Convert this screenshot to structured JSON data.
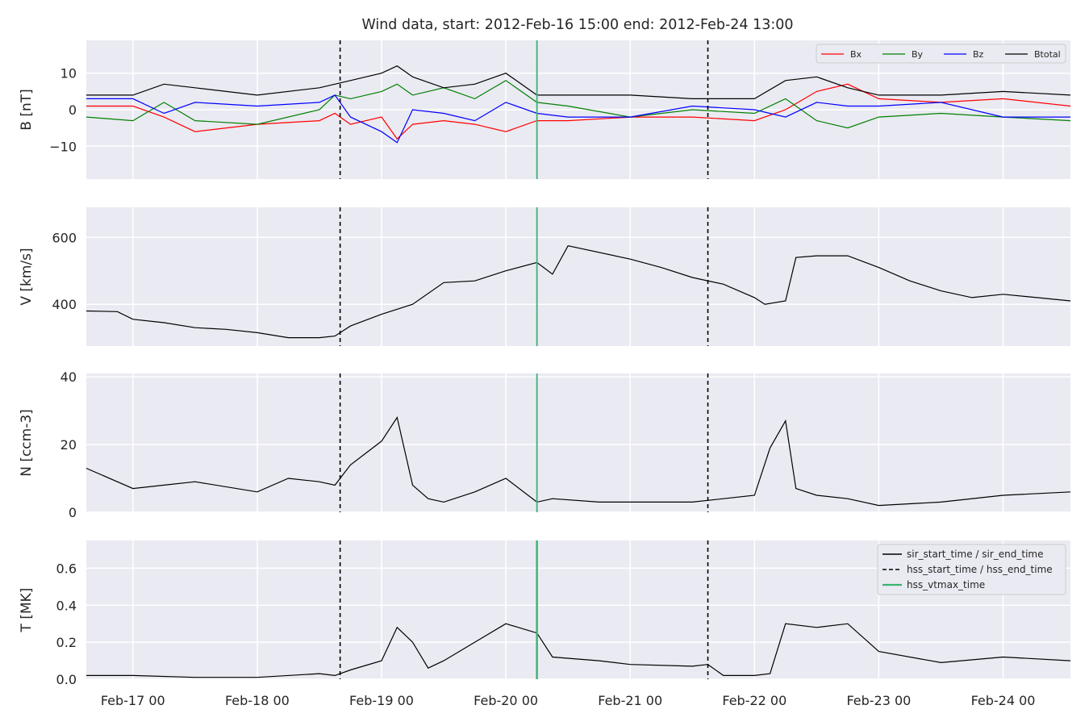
{
  "figure": {
    "title": "Wind data, start: 2012-Feb-16 15:00  end: 2012-Feb-24 13:00",
    "colors": {
      "plot_background": "#eaeaf2",
      "grid": "#ffffff",
      "text": "#262626",
      "event_line_dashed": "#000000",
      "vtmax_line": "#3cb371"
    }
  },
  "chart_data": [
    {
      "type": "line",
      "panel": "magnetic_field",
      "ylabel": "B [nT]",
      "ylim": [
        -19,
        19
      ],
      "yticks": [
        10,
        0,
        -10
      ],
      "ytick_labels": [
        "10",
        "0",
        "−10"
      ],
      "xlim": [
        "2012-02-16 15:00",
        "2012-02-24 13:00"
      ],
      "legend": {
        "position": "top-right",
        "entries": [
          "Bx",
          "By",
          "Bz",
          "Btotal"
        ]
      },
      "series": [
        {
          "name": "Bx",
          "color": "#ff0000",
          "x": [
            "2012-02-16 15:00",
            "2012-02-17 00:00",
            "2012-02-17 06:00",
            "2012-02-17 12:00",
            "2012-02-18 00:00",
            "2012-02-18 12:00",
            "2012-02-18 15:00",
            "2012-02-18 18:00",
            "2012-02-19 00:00",
            "2012-02-19 03:00",
            "2012-02-19 06:00",
            "2012-02-19 12:00",
            "2012-02-19 18:00",
            "2012-02-20 00:00",
            "2012-02-20 06:00",
            "2012-02-20 12:00",
            "2012-02-21 00:00",
            "2012-02-21 12:00",
            "2012-02-22 00:00",
            "2012-02-22 06:00",
            "2012-02-22 12:00",
            "2012-02-22 18:00",
            "2012-02-23 00:00",
            "2012-02-23 12:00",
            "2012-02-24 00:00",
            "2012-02-24 13:00"
          ],
          "y": [
            1,
            1,
            -2,
            -6,
            -4,
            -3,
            -1,
            -4,
            -2,
            -8,
            -4,
            -3,
            -4,
            -6,
            -3,
            -3,
            -2,
            -2,
            -3,
            0,
            5,
            7,
            3,
            2,
            3,
            1
          ]
        },
        {
          "name": "By",
          "color": "#008000",
          "x": [
            "2012-02-16 15:00",
            "2012-02-17 00:00",
            "2012-02-17 06:00",
            "2012-02-17 12:00",
            "2012-02-18 00:00",
            "2012-02-18 12:00",
            "2012-02-18 15:00",
            "2012-02-18 18:00",
            "2012-02-19 00:00",
            "2012-02-19 03:00",
            "2012-02-19 06:00",
            "2012-02-19 12:00",
            "2012-02-19 18:00",
            "2012-02-20 00:00",
            "2012-02-20 06:00",
            "2012-02-20 12:00",
            "2012-02-21 00:00",
            "2012-02-21 12:00",
            "2012-02-22 00:00",
            "2012-02-22 06:00",
            "2012-02-22 12:00",
            "2012-02-22 18:00",
            "2012-02-23 00:00",
            "2012-02-23 12:00",
            "2012-02-24 00:00",
            "2012-02-24 13:00"
          ],
          "y": [
            -2,
            -3,
            2,
            -3,
            -4,
            0,
            4,
            3,
            5,
            7,
            4,
            6,
            3,
            8,
            2,
            1,
            -2,
            0,
            -1,
            3,
            -3,
            -5,
            -2,
            -1,
            -2,
            -3
          ]
        },
        {
          "name": "Bz",
          "color": "#0000ff",
          "x": [
            "2012-02-16 15:00",
            "2012-02-17 00:00",
            "2012-02-17 06:00",
            "2012-02-17 12:00",
            "2012-02-18 00:00",
            "2012-02-18 12:00",
            "2012-02-18 15:00",
            "2012-02-18 18:00",
            "2012-02-19 00:00",
            "2012-02-19 03:00",
            "2012-02-19 06:00",
            "2012-02-19 12:00",
            "2012-02-19 18:00",
            "2012-02-20 00:00",
            "2012-02-20 06:00",
            "2012-02-20 12:00",
            "2012-02-21 00:00",
            "2012-02-21 12:00",
            "2012-02-22 00:00",
            "2012-02-22 06:00",
            "2012-02-22 12:00",
            "2012-02-22 18:00",
            "2012-02-23 00:00",
            "2012-02-23 12:00",
            "2012-02-24 00:00",
            "2012-02-24 13:00"
          ],
          "y": [
            3,
            3,
            -1,
            2,
            1,
            2,
            4,
            -2,
            -6,
            -9,
            0,
            -1,
            -3,
            2,
            -1,
            -2,
            -2,
            1,
            0,
            -2,
            2,
            1,
            1,
            2,
            -2,
            -2
          ]
        },
        {
          "name": "Btotal",
          "color": "#000000",
          "x": [
            "2012-02-16 15:00",
            "2012-02-17 00:00",
            "2012-02-17 06:00",
            "2012-02-17 12:00",
            "2012-02-18 00:00",
            "2012-02-18 12:00",
            "2012-02-18 15:00",
            "2012-02-18 18:00",
            "2012-02-19 00:00",
            "2012-02-19 03:00",
            "2012-02-19 06:00",
            "2012-02-19 12:00",
            "2012-02-19 18:00",
            "2012-02-20 00:00",
            "2012-02-20 06:00",
            "2012-02-20 12:00",
            "2012-02-21 00:00",
            "2012-02-21 12:00",
            "2012-02-22 00:00",
            "2012-02-22 06:00",
            "2012-02-22 12:00",
            "2012-02-22 18:00",
            "2012-02-23 00:00",
            "2012-02-23 12:00",
            "2012-02-24 00:00",
            "2012-02-24 13:00"
          ],
          "y": [
            4,
            4,
            7,
            6,
            4,
            6,
            7,
            8,
            10,
            12,
            9,
            6,
            7,
            10,
            4,
            4,
            4,
            3,
            3,
            8,
            9,
            6,
            4,
            4,
            5,
            4
          ]
        }
      ]
    },
    {
      "type": "line",
      "panel": "velocity",
      "ylabel": "V [km/s]",
      "ylim": [
        275,
        690
      ],
      "yticks": [
        600,
        400
      ],
      "ytick_labels": [
        "600",
        "400"
      ],
      "xlim": [
        "2012-02-16 15:00",
        "2012-02-24 13:00"
      ],
      "series": [
        {
          "color": "#000000",
          "x": [
            "2012-02-16 15:00",
            "2012-02-16 21:00",
            "2012-02-17 00:00",
            "2012-02-17 06:00",
            "2012-02-17 12:00",
            "2012-02-17 18:00",
            "2012-02-18 00:00",
            "2012-02-18 06:00",
            "2012-02-18 12:00",
            "2012-02-18 15:00",
            "2012-02-18 18:00",
            "2012-02-19 00:00",
            "2012-02-19 06:00",
            "2012-02-19 12:00",
            "2012-02-19 18:00",
            "2012-02-20 00:00",
            "2012-02-20 06:00",
            "2012-02-20 09:00",
            "2012-02-20 12:00",
            "2012-02-21 00:00",
            "2012-02-21 06:00",
            "2012-02-21 12:00",
            "2012-02-21 18:00",
            "2012-02-22 00:00",
            "2012-02-22 02:00",
            "2012-02-22 06:00",
            "2012-02-22 08:00",
            "2012-02-22 12:00",
            "2012-02-22 18:00",
            "2012-02-23 00:00",
            "2012-02-23 06:00",
            "2012-02-23 12:00",
            "2012-02-23 18:00",
            "2012-02-24 00:00",
            "2012-02-24 13:00"
          ],
          "y": [
            380,
            378,
            355,
            345,
            330,
            325,
            315,
            300,
            300,
            305,
            335,
            370,
            400,
            465,
            470,
            500,
            525,
            490,
            575,
            535,
            510,
            480,
            460,
            420,
            400,
            410,
            540,
            545,
            545,
            510,
            470,
            440,
            420,
            430,
            410
          ]
        }
      ]
    },
    {
      "type": "line",
      "panel": "density",
      "ylabel": "N [ccm-3]",
      "ylim": [
        0,
        41
      ],
      "yticks": [
        40,
        20,
        0
      ],
      "ytick_labels": [
        "40",
        "20",
        "0"
      ],
      "xlim": [
        "2012-02-16 15:00",
        "2012-02-24 13:00"
      ],
      "series": [
        {
          "color": "#000000",
          "x": [
            "2012-02-16 15:00",
            "2012-02-17 00:00",
            "2012-02-17 06:00",
            "2012-02-17 12:00",
            "2012-02-18 00:00",
            "2012-02-18 06:00",
            "2012-02-18 12:00",
            "2012-02-18 15:00",
            "2012-02-18 18:00",
            "2012-02-19 00:00",
            "2012-02-19 03:00",
            "2012-02-19 06:00",
            "2012-02-19 09:00",
            "2012-02-19 12:00",
            "2012-02-19 18:00",
            "2012-02-20 00:00",
            "2012-02-20 06:00",
            "2012-02-20 09:00",
            "2012-02-20 18:00",
            "2012-02-21 00:00",
            "2012-02-21 12:00",
            "2012-02-22 00:00",
            "2012-02-22 03:00",
            "2012-02-22 06:00",
            "2012-02-22 08:00",
            "2012-02-22 12:00",
            "2012-02-22 18:00",
            "2012-02-23 00:00",
            "2012-02-23 12:00",
            "2012-02-24 00:00",
            "2012-02-24 13:00"
          ],
          "y": [
            13,
            7,
            8,
            9,
            6,
            10,
            9,
            8,
            14,
            21,
            28,
            8,
            4,
            3,
            6,
            10,
            3,
            4,
            3,
            3,
            3,
            5,
            19,
            27,
            7,
            5,
            4,
            2,
            3,
            5,
            6
          ]
        }
      ]
    },
    {
      "type": "line",
      "panel": "temperature",
      "ylabel": "T [MK]",
      "ylim": [
        0,
        0.75
      ],
      "yticks": [
        0.6,
        0.4,
        0.2,
        0.0
      ],
      "ytick_labels": [
        "0.6",
        "0.4",
        "0.2",
        "0.0"
      ],
      "xlim": [
        "2012-02-16 15:00",
        "2012-02-24 13:00"
      ],
      "x_tick_labels": [
        "Feb-17 00",
        "Feb-18 00",
        "Feb-19 00",
        "Feb-20 00",
        "Feb-21 00",
        "Feb-22 00",
        "Feb-23 00",
        "Feb-24 00"
      ],
      "x_ticks": [
        "2012-02-17 00:00",
        "2012-02-18 00:00",
        "2012-02-19 00:00",
        "2012-02-20 00:00",
        "2012-02-21 00:00",
        "2012-02-22 00:00",
        "2012-02-23 00:00",
        "2012-02-24 00:00"
      ],
      "legend": {
        "position": "top-right",
        "entries": [
          "sir_start_time / sir_end_time",
          "hss_start_time / hss_end_time",
          "hss_vtmax_time"
        ]
      },
      "series": [
        {
          "color": "#000000",
          "x": [
            "2012-02-16 15:00",
            "2012-02-17 00:00",
            "2012-02-17 12:00",
            "2012-02-18 00:00",
            "2012-02-18 12:00",
            "2012-02-18 15:00",
            "2012-02-18 18:00",
            "2012-02-19 00:00",
            "2012-02-19 03:00",
            "2012-02-19 06:00",
            "2012-02-19 09:00",
            "2012-02-19 12:00",
            "2012-02-19 18:00",
            "2012-02-20 00:00",
            "2012-02-20 06:00",
            "2012-02-20 09:00",
            "2012-02-20 18:00",
            "2012-02-21 00:00",
            "2012-02-21 12:00",
            "2012-02-21 15:00",
            "2012-02-21 18:00",
            "2012-02-22 00:00",
            "2012-02-22 03:00",
            "2012-02-22 06:00",
            "2012-02-22 12:00",
            "2012-02-22 18:00",
            "2012-02-23 00:00",
            "2012-02-23 12:00",
            "2012-02-24 00:00",
            "2012-02-24 13:00"
          ],
          "y": [
            0.02,
            0.02,
            0.01,
            0.01,
            0.03,
            0.02,
            0.05,
            0.1,
            0.28,
            0.2,
            0.06,
            0.1,
            0.2,
            0.3,
            0.25,
            0.12,
            0.1,
            0.08,
            0.07,
            0.08,
            0.02,
            0.02,
            0.03,
            0.3,
            0.28,
            0.3,
            0.15,
            0.09,
            0.12,
            0.1
          ]
        }
      ]
    }
  ],
  "events": {
    "dashed_lines": [
      "2012-02-18 16:00",
      "2012-02-21 15:00"
    ],
    "solid_green_line": "2012-02-20 06:00"
  }
}
